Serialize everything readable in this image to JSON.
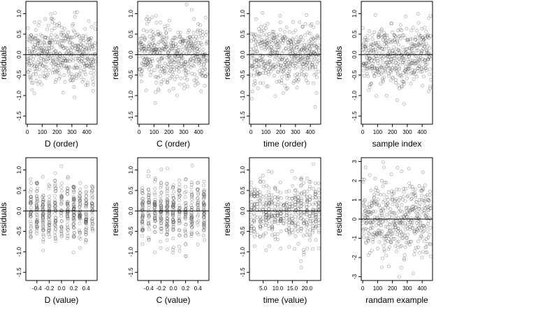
{
  "chart_data": [
    {
      "type": "scatter",
      "xlabel": "D (order)",
      "ylabel": "residuals",
      "xlim": [
        -10,
        470
      ],
      "ylim": [
        -1.7,
        1.3
      ],
      "xticks": [
        0,
        100,
        200,
        300,
        400
      ],
      "yticks": [
        -1.5,
        -1.0,
        -0.5,
        0.0,
        0.5,
        1.0
      ],
      "hline": 0,
      "n": 460,
      "x_mode": "index"
    },
    {
      "type": "scatter",
      "xlabel": "C (order)",
      "ylabel": "residuals",
      "xlim": [
        -10,
        470
      ],
      "ylim": [
        -1.7,
        1.3
      ],
      "xticks": [
        0,
        100,
        200,
        300,
        400
      ],
      "yticks": [
        -1.5,
        -1.0,
        -0.5,
        0.0,
        0.5,
        1.0
      ],
      "hline": 0,
      "n": 460,
      "x_mode": "index"
    },
    {
      "type": "scatter",
      "xlabel": "time (order)",
      "ylabel": "residuals",
      "xlim": [
        -10,
        470
      ],
      "ylim": [
        -1.7,
        1.3
      ],
      "xticks": [
        0,
        100,
        200,
        300,
        400
      ],
      "yticks": [
        -1.5,
        -1.0,
        -0.5,
        0.0,
        0.5,
        1.0
      ],
      "hline": 0,
      "n": 460,
      "x_mode": "index"
    },
    {
      "type": "scatter",
      "xlabel": "sample index",
      "ylabel": "residuals",
      "xlim": [
        -10,
        470
      ],
      "ylim": [
        -1.7,
        1.3
      ],
      "xticks": [
        0,
        100,
        200,
        300,
        400
      ],
      "yticks": [
        -1.5,
        -1.0,
        -0.5,
        0.0,
        0.5,
        1.0
      ],
      "hline": 0,
      "n": 460,
      "x_mode": "index"
    },
    {
      "type": "scatter",
      "xlabel": "D (value)",
      "ylabel": "residuals",
      "xlim": [
        -0.58,
        0.58
      ],
      "ylim": [
        -1.7,
        1.3
      ],
      "xticks": [
        -0.4,
        -0.2,
        0.0,
        0.2,
        0.4
      ],
      "yticks": [
        -1.5,
        -1.0,
        -0.5,
        0.0,
        0.5,
        1.0
      ],
      "hline": 0,
      "n": 460,
      "x_mode": "groups",
      "x_groups": [
        -0.5,
        -0.4,
        -0.3,
        -0.2,
        -0.1,
        0.0,
        0.1,
        0.2,
        0.3,
        0.4,
        0.5
      ]
    },
    {
      "type": "scatter",
      "xlabel": "C (value)",
      "ylabel": "residuals",
      "xlim": [
        -0.58,
        0.58
      ],
      "ylim": [
        -1.7,
        1.3
      ],
      "xticks": [
        -0.4,
        -0.2,
        0.0,
        0.2,
        0.4
      ],
      "yticks": [
        -1.5,
        -1.0,
        -0.5,
        0.0,
        0.5,
        1.0
      ],
      "hline": 0,
      "n": 460,
      "x_mode": "groups",
      "x_groups": [
        -0.5,
        -0.4,
        -0.3,
        -0.2,
        -0.1,
        0.0,
        0.1,
        0.2,
        0.3,
        0.4,
        0.5
      ]
    },
    {
      "type": "scatter",
      "xlabel": "time (value)",
      "ylabel": "residuals",
      "xlim": [
        0.3,
        24.7
      ],
      "ylim": [
        -1.7,
        1.3
      ],
      "xticks": [
        5,
        10,
        15,
        20
      ],
      "yticks": [
        -1.5,
        -1.0,
        -0.5,
        0.0,
        0.5,
        1.0
      ],
      "hline": 0,
      "n": 460,
      "x_mode": "groups",
      "x_groups": [
        1,
        2,
        3,
        4,
        5,
        6,
        7,
        8,
        9,
        10,
        11,
        12,
        13,
        14,
        15,
        16,
        17,
        18,
        19,
        20,
        21,
        22,
        23,
        24
      ]
    },
    {
      "type": "scatter",
      "xlabel": "randam example",
      "ylabel": "residuals",
      "xlim": [
        -10,
        470
      ],
      "ylim": [
        -3.2,
        3.2
      ],
      "xticks": [
        0,
        100,
        200,
        300,
        400
      ],
      "yticks": [
        -3,
        -2,
        -1,
        0,
        1,
        2,
        3
      ],
      "hline": 0,
      "n": 460,
      "x_mode": "index"
    }
  ],
  "colors": {
    "points": "#555555",
    "axis": "#000000",
    "hline": "#000000"
  }
}
